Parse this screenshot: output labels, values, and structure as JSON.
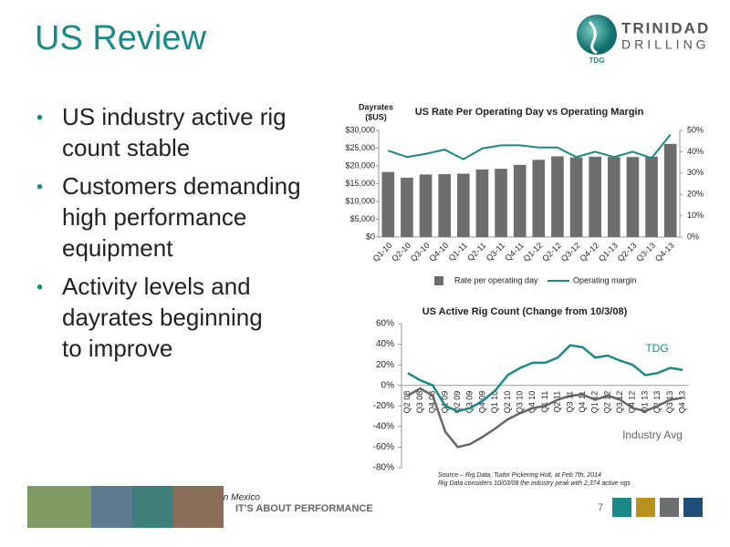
{
  "title": "US Review",
  "logo": {
    "name1": "TRINIDAD",
    "name2": "DRILLING",
    "mark": "TDG"
  },
  "bullets": [
    [
      "US industry active rig",
      "count stable"
    ],
    [
      "Customers demanding",
      "high performance",
      "equipment"
    ],
    [
      "Activity levels and",
      "dayrates beginning",
      "to improve"
    ]
  ],
  "note": "Note – US operating results include three rigs in Mexico",
  "footer": "IT'S ABOUT PERFORMANCE",
  "page_number": "7",
  "chart_data": [
    {
      "type": "bar",
      "title": "US Rate Per Operating Day vs Operating Margin",
      "ylabel": [
        "Dayrates",
        "($US)"
      ],
      "categories": [
        "Q1-10",
        "Q2-10",
        "Q3-10",
        "Q4-10",
        "Q1-11",
        "Q2-11",
        "Q3-11",
        "Q4-11",
        "Q1-12",
        "Q2-12",
        "Q3-12",
        "Q4-12",
        "Q1-13",
        "Q2-13",
        "Q3-13",
        "Q4-13"
      ],
      "series": [
        {
          "name": "Rate per operating day",
          "type": "bar",
          "color": "#6d6d6d",
          "values": [
            18300,
            16700,
            17600,
            17700,
            17800,
            19000,
            19200,
            20300,
            21700,
            22700,
            22400,
            22600,
            22500,
            22500,
            22600,
            26200
          ]
        },
        {
          "name": "Operating margin",
          "type": "line",
          "axis": "y2",
          "color": "#1a8a86",
          "values": [
            40.5,
            37.5,
            39,
            41,
            36.5,
            41.5,
            43,
            43,
            42,
            42,
            37.5,
            40,
            37.5,
            40,
            37,
            48
          ]
        }
      ],
      "ylim": [
        0,
        30000
      ],
      "yticks": [
        {
          "value": 0,
          "label": "$0"
        },
        {
          "value": 5000,
          "label": "$5,000"
        },
        {
          "value": 10000,
          "label": "$10,000"
        },
        {
          "value": 15000,
          "label": "$15,000"
        },
        {
          "value": 20000,
          "label": "$20,000"
        },
        {
          "value": 25000,
          "label": "$25,000"
        },
        {
          "value": 30000,
          "label": "$30,000"
        }
      ],
      "y2lim": [
        0,
        50
      ],
      "y2ticks": [
        {
          "value": 0,
          "label": "0%"
        },
        {
          "value": 10,
          "label": "10%"
        },
        {
          "value": 20,
          "label": "20%"
        },
        {
          "value": 30,
          "label": "30%"
        },
        {
          "value": 40,
          "label": "40%"
        },
        {
          "value": 50,
          "label": "50%"
        }
      ],
      "grid": false,
      "legend": "bottom"
    },
    {
      "type": "line",
      "title": "US Active Rig Count (Change from 10/3/08)",
      "categories": [
        "Q2 08",
        "Q3 08",
        "Q4 08",
        "Q1 09",
        "Q2 09",
        "Q3 09",
        "Q4 09",
        "Q1 10",
        "Q2 10",
        "Q3 10",
        "Q4 10",
        "Q1 11",
        "Q2 11",
        "Q3 11",
        "Q4 11",
        "Q1 12",
        "Q2 12",
        "Q3 12",
        "Q4 12",
        "Q1 13",
        "Q2 13",
        "Q3 13",
        "Q4 13"
      ],
      "series": [
        {
          "name": "TDG",
          "color": "#1a8a86",
          "values": [
            12,
            5,
            0,
            -20,
            -25,
            -22,
            -15,
            -5,
            10,
            17,
            22,
            22,
            27,
            39,
            37,
            27,
            29,
            24,
            20,
            10,
            12,
            17,
            15
          ]
        },
        {
          "name": "Industry Avg",
          "color": "#666666",
          "values": [
            -10,
            -3,
            -10,
            -45,
            -60,
            -57,
            -50,
            -42,
            -33,
            -27,
            -22,
            -20,
            -14,
            -10,
            -9,
            -14,
            -10,
            -14,
            -22,
            -25,
            -20,
            -14,
            -12
          ]
        }
      ],
      "ylim": [
        -80,
        60
      ],
      "yticks": [
        {
          "value": -80,
          "label": "-80%"
        },
        {
          "value": -60,
          "label": "-60%"
        },
        {
          "value": -40,
          "label": "-40%"
        },
        {
          "value": -20,
          "label": "-20%"
        },
        {
          "value": 0,
          "label": "0%"
        },
        {
          "value": 20,
          "label": "20%"
        },
        {
          "value": 40,
          "label": "40%"
        },
        {
          "value": 60,
          "label": "60%"
        }
      ],
      "grid": false,
      "source": [
        "Source – Rig Data, Tudor Pickering Holt, at Feb 7th, 2014",
        "Rig Data considers 10/03/08 the industry peak with 2,374 active rigs"
      ]
    }
  ]
}
